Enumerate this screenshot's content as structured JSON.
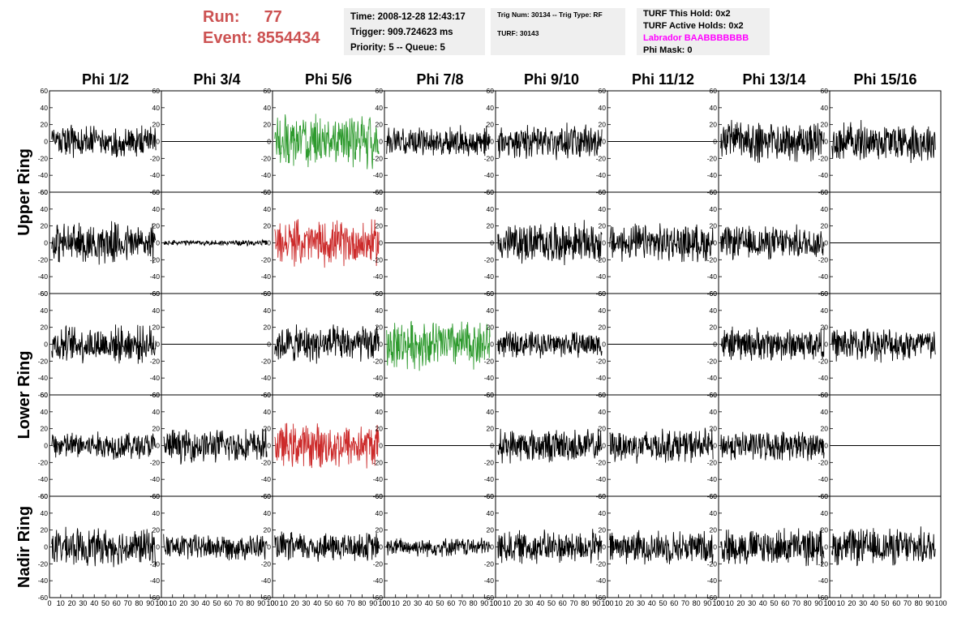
{
  "header": {
    "run_label": "Run:",
    "run_value": "77",
    "event_label": "Event:",
    "event_value": "8554434"
  },
  "info": {
    "time": "Time: 2008-12-28 12:43:17",
    "trigger": "Trigger: 909.724623 ms",
    "priority": "Priority: 5 -- Queue: 5",
    "trig_num": "Trig Num: 30134 -- Trig Type: RF",
    "turf": "TURF: 30143",
    "turf_this_hold": "TURF This Hold: 0x2",
    "turf_active_holds": "TURF Active Holds: 0x2",
    "labrador": "Labrador BAABBBBBBB",
    "phi_mask": "Phi Mask: 0"
  },
  "colors": {
    "header_red": "#cc5252",
    "labrador": "#ff00ff",
    "green_trace": "#2e9a2e",
    "red_trace": "#cc2a2a"
  },
  "chart_data": {
    "type": "line",
    "columns": [
      "Phi 1/2",
      "Phi 3/4",
      "Phi 5/6",
      "Phi 7/8",
      "Phi 9/10",
      "Phi 11/12",
      "Phi 13/14",
      "Phi 15/16"
    ],
    "ring_labels": [
      "Upper Ring",
      "Lower Ring",
      "Nadir Ring"
    ],
    "rows_per_ring": [
      2,
      2,
      1
    ],
    "xlim": [
      0,
      100
    ],
    "ylim": [
      -60,
      60
    ],
    "x_ticks": [
      "0",
      "10",
      "20",
      "30",
      "40",
      "50",
      "60",
      "70",
      "80",
      "90",
      "100"
    ],
    "y_ticks": [
      "-60",
      "-40",
      "-20",
      "0",
      "20",
      "40",
      "60"
    ],
    "grid": false,
    "panels": [
      [
        {
          "style": "black",
          "amp": 18
        },
        {
          "style": "flat",
          "amp": 0
        },
        {
          "style": "green",
          "amp": 28
        },
        {
          "style": "black",
          "amp": 16
        },
        {
          "style": "black",
          "amp": 18
        },
        {
          "style": "flat",
          "amp": 0
        },
        {
          "style": "black",
          "amp": 22
        },
        {
          "style": "black",
          "amp": 22
        }
      ],
      [
        {
          "style": "black",
          "amp": 22
        },
        {
          "style": "black",
          "amp": 3
        },
        {
          "style": "red",
          "amp": 24
        },
        {
          "style": "flat",
          "amp": 0
        },
        {
          "style": "black",
          "amp": 22
        },
        {
          "style": "black",
          "amp": 20
        },
        {
          "style": "black",
          "amp": 18
        },
        {
          "style": "flat",
          "amp": 0
        }
      ],
      [
        {
          "style": "black",
          "amp": 20
        },
        {
          "style": "flat",
          "amp": 0
        },
        {
          "style": "black",
          "amp": 20
        },
        {
          "style": "green",
          "amp": 26
        },
        {
          "style": "black",
          "amp": 14
        },
        {
          "style": "flat",
          "amp": 0
        },
        {
          "style": "black",
          "amp": 18
        },
        {
          "style": "black",
          "amp": 18
        }
      ],
      [
        {
          "style": "black",
          "amp": 15
        },
        {
          "style": "black",
          "amp": 18
        },
        {
          "style": "red",
          "amp": 24
        },
        {
          "style": "flat",
          "amp": 0
        },
        {
          "style": "black",
          "amp": 18
        },
        {
          "style": "black",
          "amp": 18
        },
        {
          "style": "black",
          "amp": 16
        },
        {
          "style": "flat",
          "amp": 0
        }
      ],
      [
        {
          "style": "black",
          "amp": 20
        },
        {
          "style": "black",
          "amp": 14
        },
        {
          "style": "black",
          "amp": 16
        },
        {
          "style": "black",
          "amp": 10
        },
        {
          "style": "black",
          "amp": 18
        },
        {
          "style": "black",
          "amp": 18
        },
        {
          "style": "black",
          "amp": 20
        },
        {
          "style": "black",
          "amp": 20
        }
      ]
    ]
  }
}
